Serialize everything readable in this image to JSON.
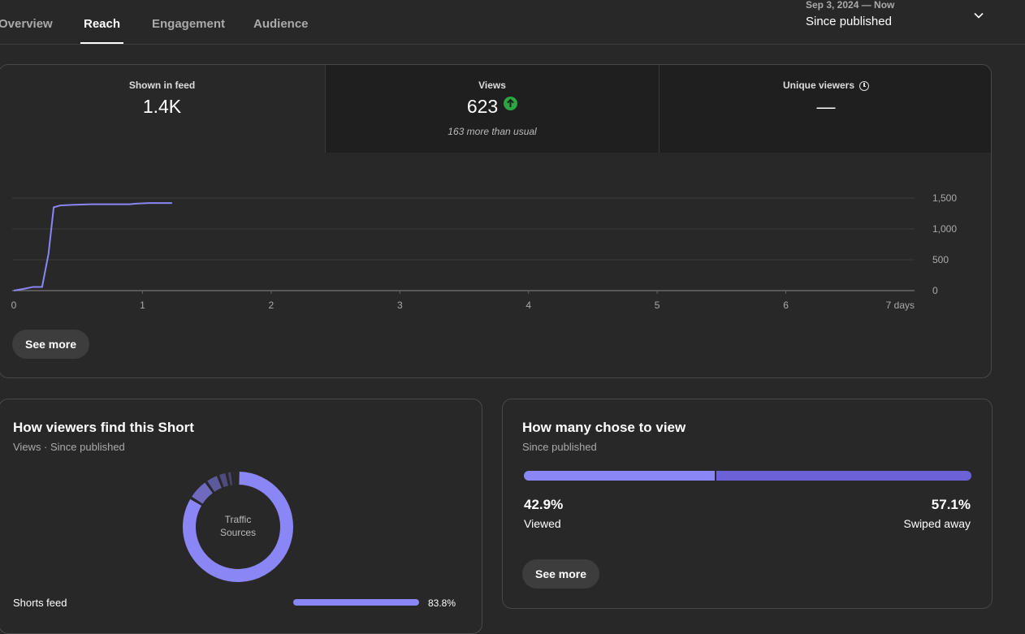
{
  "tabs": [
    {
      "label": "Overview"
    },
    {
      "label": "Reach"
    },
    {
      "label": "Engagement"
    },
    {
      "label": "Audience"
    }
  ],
  "date_range": {
    "sub": "Sep 3, 2024 — Now",
    "main": "Since published",
    "icon": "chevron-down-icon"
  },
  "metrics": [
    {
      "label": "Shown in feed",
      "value": "1.4K"
    },
    {
      "label": "Views",
      "value": "623",
      "note": "163 more than usual",
      "icon": "arrow-up-icon"
    },
    {
      "label": "Unique viewers",
      "value": "—",
      "icon": "clock-icon"
    }
  ],
  "chart_data": {
    "type": "line",
    "xlabel": "",
    "ylabel": "",
    "x_ticks": [
      "0",
      "1",
      "2",
      "3",
      "4",
      "5",
      "6",
      "7 days"
    ],
    "y_ticks": [
      "0",
      "500",
      "1,000",
      "1,500"
    ],
    "xlim": [
      0,
      7
    ],
    "ylim": [
      0,
      1500
    ],
    "grid": true,
    "series": [
      {
        "color": "#8b86f6",
        "x": [
          0,
          0.08,
          0.15,
          0.22,
          0.27,
          0.31,
          0.36,
          0.45,
          0.6,
          0.9,
          0.95,
          1.05,
          1.23
        ],
        "y": [
          0,
          30,
          60,
          60,
          600,
          1350,
          1380,
          1390,
          1400,
          1400,
          1410,
          1420,
          1420
        ]
      }
    ]
  },
  "reach_card": {
    "see_more": "See more"
  },
  "traffic": {
    "title": "How viewers find this Short",
    "subtitle": "Views · Since published",
    "center_line1": "Traffic",
    "center_line2": "Sources",
    "segments_pct": [
      83.8,
      6.4,
      3.9,
      2.6,
      1.6,
      0.9,
      0.8
    ],
    "segment_colors": [
      "#8b86f6",
      "#6f6abf",
      "#5d5a9c",
      "#4e4c7e",
      "#46456a",
      "#4a4a5a",
      "#505050"
    ],
    "top_source": {
      "label": "Shorts feed",
      "pct": "83.8%",
      "value": 83.8
    }
  },
  "chose_view": {
    "title": "How many chose to view",
    "subtitle": "Since published",
    "viewed": {
      "pct": "42.9%",
      "label": "Viewed",
      "value": 42.9,
      "color": "#8b86f6"
    },
    "swiped": {
      "pct": "57.1%",
      "label": "Swiped away",
      "value": 57.1,
      "color": "#6b62d8"
    },
    "see_more": "See more"
  }
}
